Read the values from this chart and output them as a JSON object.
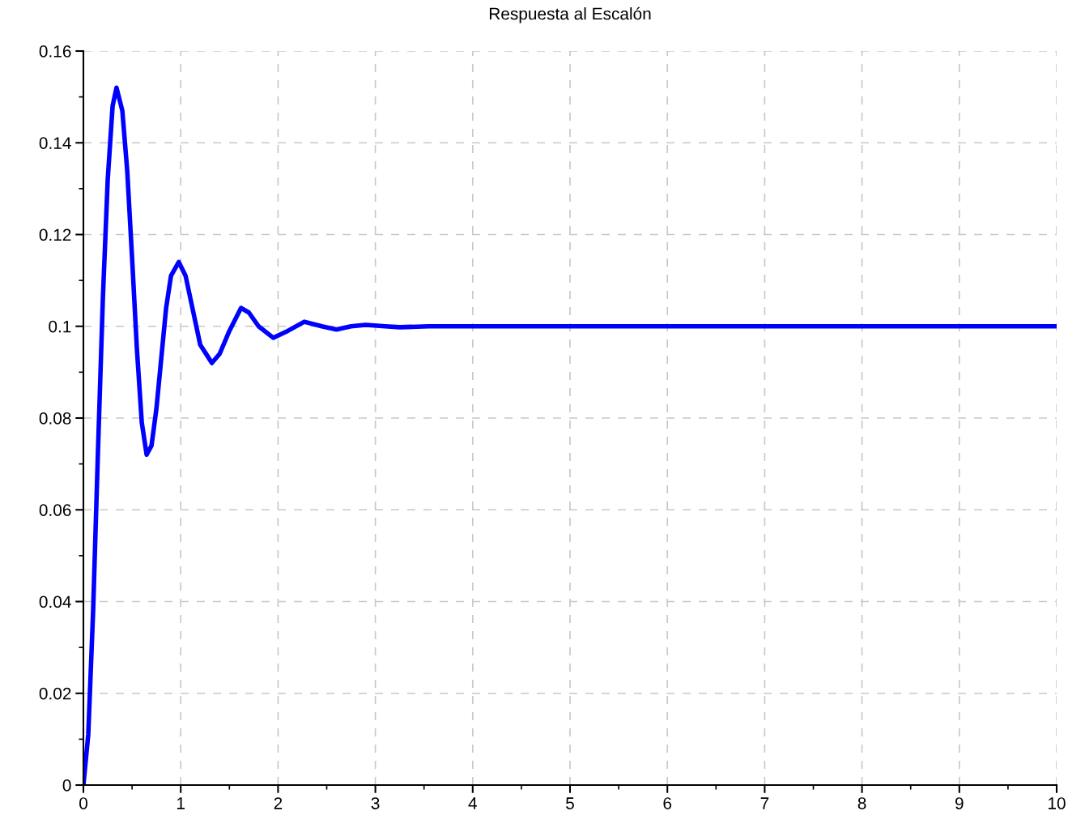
{
  "chart_data": {
    "type": "line",
    "title": "Respuesta al Escalón",
    "x": [
      0,
      0.05,
      0.1,
      0.15,
      0.2,
      0.25,
      0.3,
      0.34,
      0.4,
      0.45,
      0.5,
      0.55,
      0.6,
      0.65,
      0.7,
      0.75,
      0.8,
      0.85,
      0.9,
      0.98,
      1.05,
      1.1,
      1.2,
      1.32,
      1.4,
      1.5,
      1.62,
      1.7,
      1.8,
      1.95,
      2.1,
      2.27,
      2.45,
      2.6,
      2.75,
      2.9,
      3.1,
      3.25,
      3.55,
      4,
      5,
      6,
      7,
      8,
      9,
      10
    ],
    "series": [
      {
        "color": "#0000ff",
        "values": [
          0,
          0.011,
          0.038,
          0.073,
          0.106,
          0.132,
          0.148,
          0.152,
          0.147,
          0.134,
          0.115,
          0.095,
          0.079,
          0.072,
          0.074,
          0.082,
          0.093,
          0.104,
          0.111,
          0.114,
          0.111,
          0.106,
          0.096,
          0.092,
          0.094,
          0.099,
          0.104,
          0.103,
          0.1,
          0.0975,
          0.099,
          0.101,
          0.1,
          0.0993,
          0.1,
          0.1003,
          0.1,
          0.0998,
          0.1,
          0.1,
          0.1,
          0.1,
          0.1,
          0.1,
          0.1,
          0.1
        ]
      }
    ],
    "xlim": [
      0,
      10
    ],
    "xticks": [
      0,
      1,
      2,
      3,
      4,
      5,
      6,
      7,
      8,
      9,
      10
    ],
    "ylim": [
      0,
      0.16
    ],
    "yticks": [
      0,
      0.02,
      0.04,
      0.06,
      0.08,
      0.1,
      0.12,
      0.14,
      0.16
    ],
    "grid": true,
    "line_style": "solid",
    "marker": "none"
  }
}
